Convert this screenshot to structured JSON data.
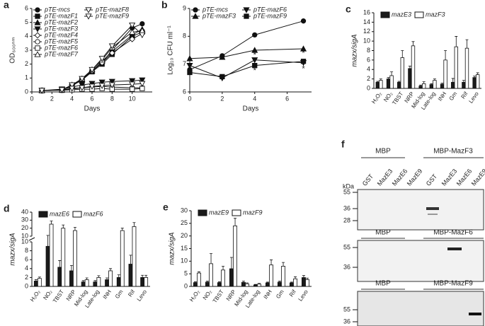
{
  "chart_data": [
    {
      "type": "line",
      "panel": "a",
      "xlabel": "Days",
      "ylabel": "OD₆₀₀ₙₘ",
      "x": [
        1,
        3,
        4,
        5,
        6,
        7,
        8,
        10,
        11
      ],
      "xlim": [
        0,
        12
      ],
      "xticks": [
        0,
        2,
        4,
        6,
        8,
        10
      ],
      "ylim": [
        0,
        6
      ],
      "yticks": [
        0,
        1,
        2,
        3,
        4,
        5,
        6
      ],
      "series": [
        {
          "name": "pTE-mcs",
          "marker": "circle",
          "filled": true,
          "values": [
            0.1,
            0.15,
            0.5,
            0.9,
            1.5,
            2.1,
            3.0,
            4.6,
            4.9
          ]
        },
        {
          "name": "pTE-mazF1",
          "marker": "square",
          "filled": true,
          "values": [
            0.1,
            0.15,
            0.45,
            0.85,
            1.45,
            2.0,
            2.7,
            4.0,
            4.3
          ]
        },
        {
          "name": "pTE-mazF2",
          "marker": "triangle",
          "filled": true,
          "values": [
            0.1,
            0.15,
            0.45,
            0.9,
            1.5,
            2.2,
            2.9,
            4.1,
            4.5
          ]
        },
        {
          "name": "pTE-mazF3",
          "marker": "down",
          "filled": true,
          "values": [
            0.1,
            0.2,
            0.35,
            0.5,
            0.6,
            0.7,
            0.75,
            0.8,
            0.85
          ]
        },
        {
          "name": "pTE-mazF4",
          "marker": "diamond",
          "filled": false,
          "values": [
            0.1,
            0.15,
            0.5,
            0.9,
            1.5,
            2.1,
            2.8,
            3.8,
            4.2
          ]
        },
        {
          "name": "pTE-mazF5",
          "marker": "circle",
          "filled": false,
          "values": [
            0.1,
            0.15,
            0.2,
            0.3,
            0.35,
            0.4,
            0.35,
            0.3,
            0.3
          ]
        },
        {
          "name": "pTE-mazF6",
          "marker": "square",
          "filled": false,
          "values": [
            0.1,
            0.12,
            0.15,
            0.2,
            0.2,
            0.25,
            0.2,
            0.2,
            0.25
          ]
        },
        {
          "name": "pTE-mazF7",
          "marker": "triangle",
          "filled": false,
          "values": [
            0.1,
            0.15,
            0.5,
            0.95,
            1.6,
            2.3,
            3.2,
            4.3,
            4.4
          ]
        },
        {
          "name": "pTE-mazF8",
          "marker": "down",
          "filled": false,
          "values": [
            0.1,
            0.15,
            0.5,
            0.95,
            1.6,
            2.4,
            3.3,
            4.8,
            4.1
          ]
        },
        {
          "name": "pTE-mazF9",
          "marker": "down",
          "filled": false,
          "values": [
            0.1,
            0.15,
            0.25,
            0.3,
            0.4,
            0.45,
            0.5,
            0.55,
            0.6
          ]
        }
      ]
    },
    {
      "type": "line",
      "panel": "b",
      "xlabel": "Days",
      "ylabel": "Log₁₀ CFU ml⁻¹",
      "x": [
        0,
        2,
        4,
        7
      ],
      "xlim": [
        0,
        7.5
      ],
      "xticks": [
        0,
        2,
        4,
        6
      ],
      "ylim": [
        6,
        9
      ],
      "yticks": [
        6,
        7,
        8,
        9
      ],
      "series": [
        {
          "name": "pTE-mcs",
          "marker": "circle",
          "filled": true,
          "values": [
            6.8,
            7.3,
            8.05,
            8.55
          ]
        },
        {
          "name": "pTE-mazF3",
          "marker": "triangle",
          "filled": true,
          "values": [
            7.2,
            7.25,
            7.5,
            7.55
          ]
        },
        {
          "name": "pTE-mazF6",
          "marker": "down",
          "filled": true,
          "values": [
            6.95,
            6.5,
            7.15,
            7.05
          ]
        },
        {
          "name": "pTE-mazF9",
          "marker": "square",
          "filled": true,
          "values": [
            6.7,
            6.55,
            6.95,
            7.1
          ]
        }
      ],
      "annotations": [
        {
          "text": "*",
          "x": 4,
          "y": 7.32
        },
        {
          "text": "*",
          "x": 4,
          "y": 6.76
        },
        {
          "text": "*",
          "x": 7,
          "y": 7.38
        },
        {
          "text": "*",
          "x": 7,
          "y": 6.82
        }
      ]
    },
    {
      "type": "bar",
      "panel": "c",
      "ylabel": "mazx/sigA",
      "categories": [
        "H₂O₂",
        "NO₂",
        "TBST",
        "NRP",
        "Mid-log",
        "Late-log",
        "INH",
        "Gm",
        "Rif",
        "Levo"
      ],
      "ylim": [
        0,
        16
      ],
      "yticks": [
        0,
        2,
        4,
        6,
        8,
        10,
        12,
        14,
        16
      ],
      "series": [
        {
          "name": "mazE3",
          "color": "#1a1a1a",
          "values": [
            1.3,
            2.0,
            1.3,
            4.2,
            0.5,
            0.8,
            0.9,
            1.3,
            1.3,
            2.3
          ],
          "errors": [
            0.2,
            0.3,
            0.2,
            0.5,
            0.2,
            0.2,
            0.2,
            0.8,
            0.4,
            0.3
          ]
        },
        {
          "name": "mazF3",
          "color": "#ffffff",
          "values": [
            1.7,
            2.7,
            6.5,
            9.0,
            1.0,
            1.7,
            6.0,
            8.8,
            8.5,
            2.9
          ],
          "errors": [
            0.3,
            0.8,
            1.5,
            0.9,
            0.4,
            0.3,
            2.0,
            2.2,
            1.8,
            0.4
          ]
        }
      ]
    },
    {
      "type": "bar",
      "panel": "d",
      "ylabel": "mazx/sigA",
      "categories": [
        "H₂O₂",
        "NO₂",
        "TBST",
        "NRP",
        "Mid-log",
        "Late-log",
        "INH",
        "Gm",
        "Rif",
        "Levo"
      ],
      "ylim": [
        0,
        40
      ],
      "ybreak": 10,
      "yticks": [
        0,
        2,
        4,
        6,
        8,
        10,
        20,
        30,
        40
      ],
      "series": [
        {
          "name": "mazE6",
          "color": "#1a1a1a",
          "values": [
            1.2,
            9.0,
            4.3,
            3.5,
            1.0,
            1.0,
            1.5,
            2.0,
            5.0,
            2.0
          ],
          "errors": [
            0.3,
            2.0,
            1.5,
            1.2,
            0.3,
            0.3,
            0.4,
            0.6,
            2.0,
            0.5
          ]
        },
        {
          "name": "mazF6",
          "color": "#ffffff",
          "values": [
            1.8,
            25,
            20,
            17,
            1.5,
            2.0,
            3.5,
            17,
            22,
            2.0
          ],
          "errors": [
            0.3,
            4,
            4,
            4,
            0.4,
            0.4,
            0.5,
            3,
            5,
            0.5
          ]
        }
      ]
    },
    {
      "type": "bar",
      "panel": "e",
      "ylabel": "mazx/sigA",
      "categories": [
        "H₂O₂",
        "NO₂",
        "TBST",
        "NRP",
        "Mid-log",
        "Late-log",
        "INH",
        "Gm",
        "Rif",
        "Levo"
      ],
      "ylim": [
        0,
        30
      ],
      "yticks": [
        0,
        5,
        10,
        15,
        20,
        25,
        30
      ],
      "series": [
        {
          "name": "mazE9",
          "color": "#1a1a1a",
          "values": [
            1.5,
            1.7,
            1.5,
            7.0,
            1.6,
            0.6,
            1.4,
            1.7,
            1.4,
            3.5
          ],
          "errors": [
            0.3,
            0.4,
            0.3,
            4.5,
            0.5,
            0.2,
            0.3,
            0.4,
            0.3,
            0.8
          ]
        },
        {
          "name": "mazF9",
          "color": "#ffffff",
          "values": [
            5.3,
            9.0,
            6.5,
            24,
            1.0,
            0.9,
            8.5,
            8.0,
            3.0,
            2.7
          ],
          "errors": [
            0.5,
            4.0,
            1.5,
            3.0,
            0.4,
            0.3,
            2.0,
            1.5,
            0.8,
            0.6
          ]
        }
      ]
    }
  ],
  "blot": {
    "panel": "f",
    "unit": "kDa",
    "lanes": [
      "GST",
      "MazE3",
      "MazE6",
      "MazE9",
      "GST",
      "MazE3",
      "MazE6",
      "MazE9"
    ],
    "blots": [
      {
        "left": "MBP",
        "right": "MBP-MazF3",
        "markers": [
          55,
          36,
          28
        ]
      },
      {
        "left": "MBP",
        "right": "MBP-MazF6",
        "markers": [
          55,
          36
        ]
      },
      {
        "left": "MBP",
        "right": "MBP-MazF9",
        "markers": [
          55,
          36
        ]
      }
    ]
  }
}
